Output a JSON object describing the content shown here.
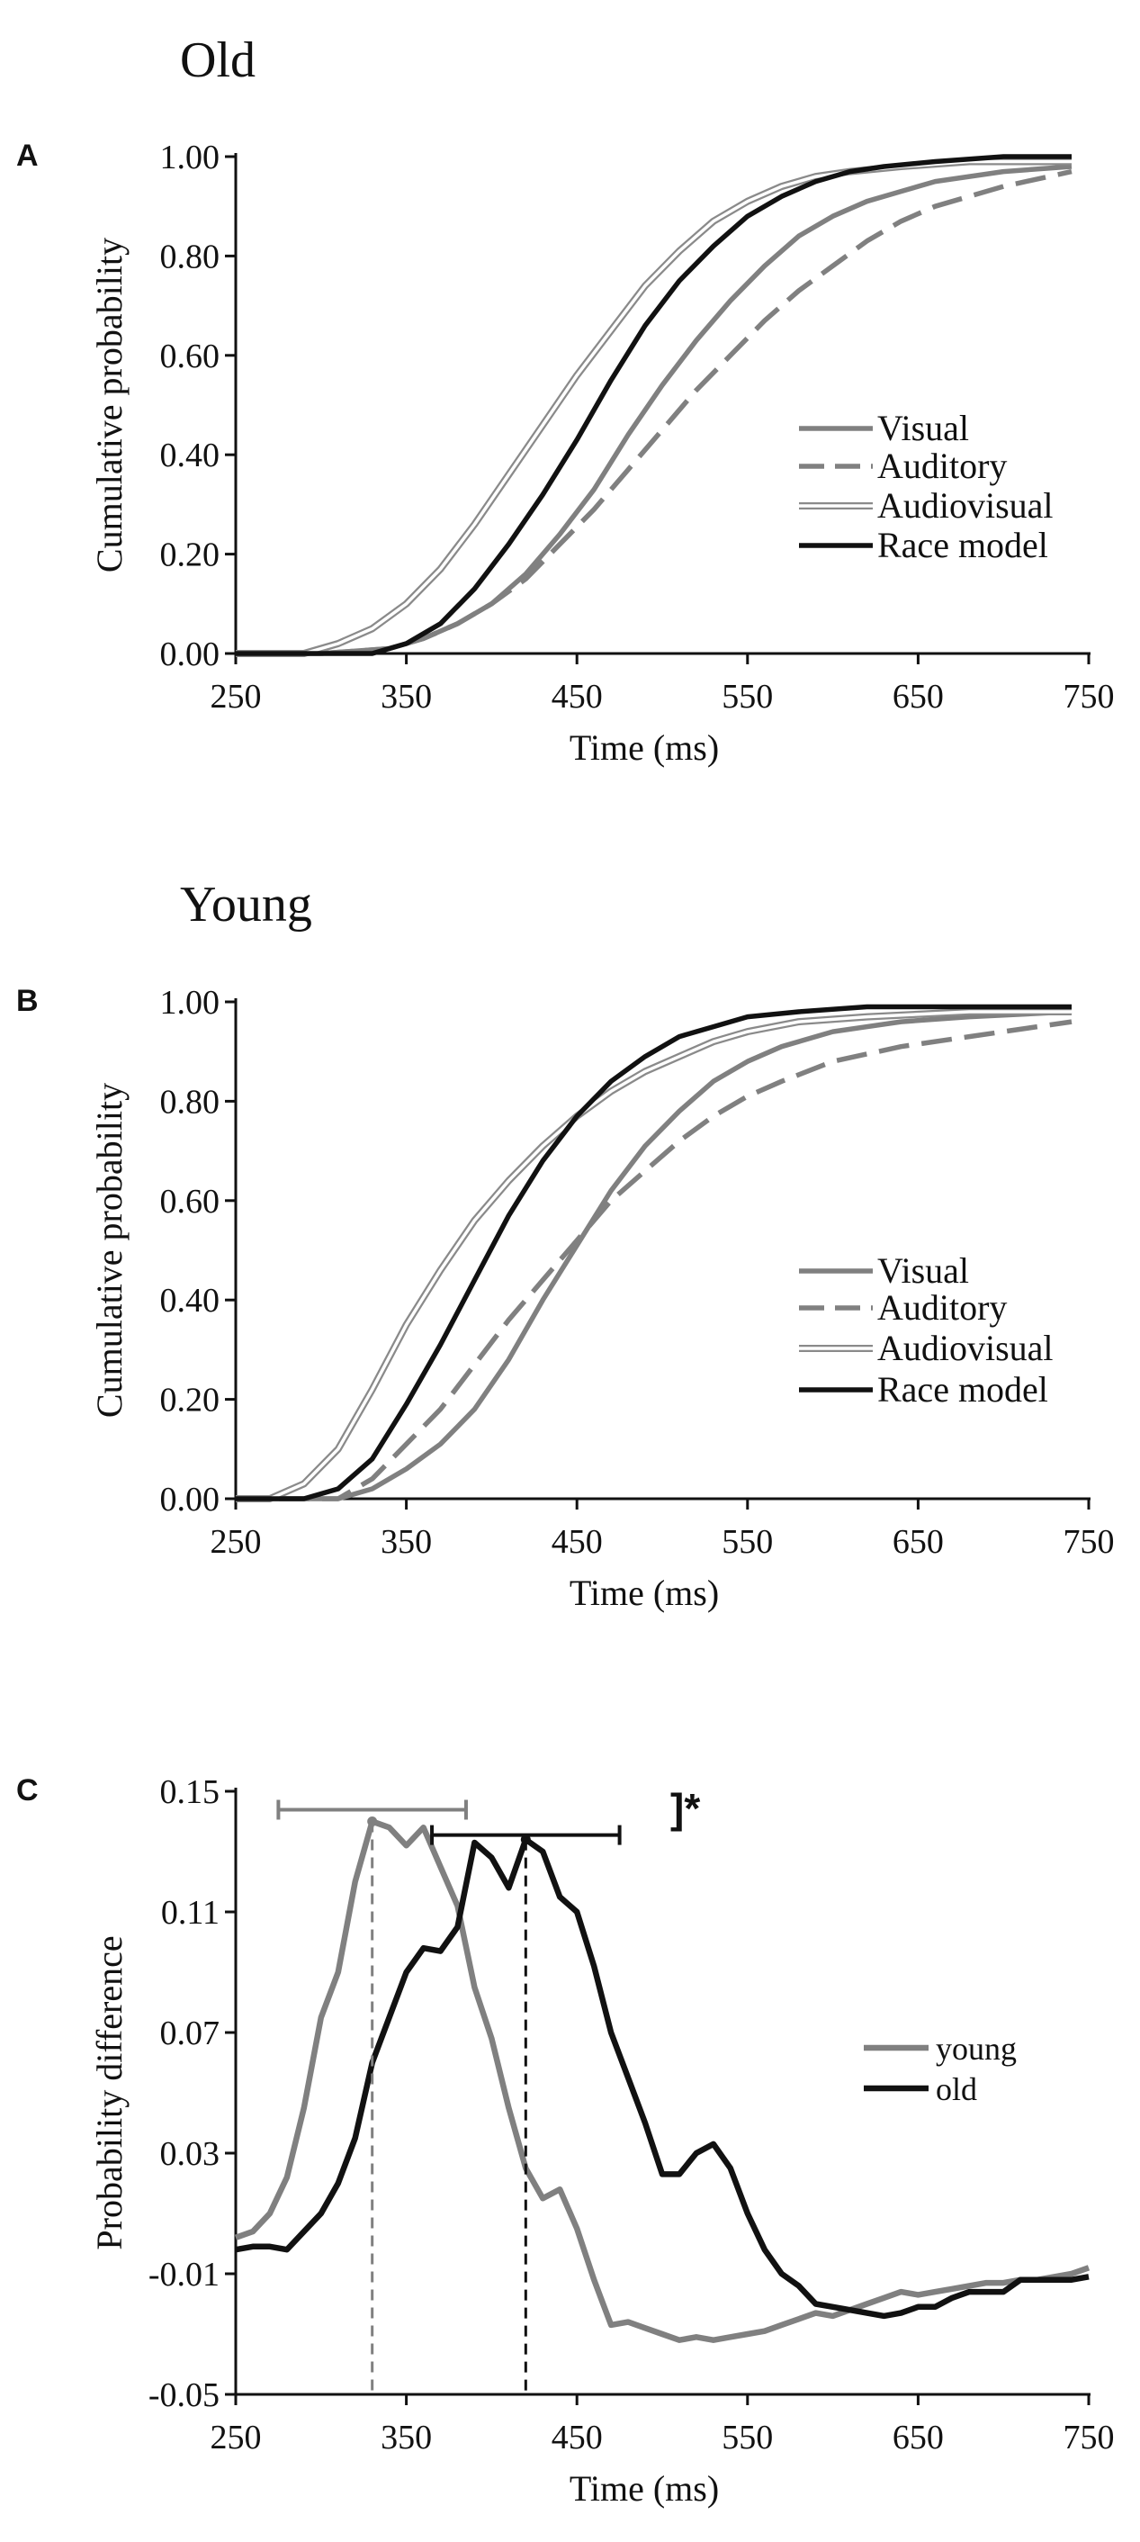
{
  "colors": {
    "black": "#111111",
    "gray": "#808080",
    "double_outer": "#8a8a8a",
    "white": "#ffffff"
  },
  "chart_data": [
    {
      "type": "line",
      "id": "A",
      "panel_letter": "A",
      "title": "Old",
      "xlabel": "Time (ms)",
      "ylabel": "Cumulative probability",
      "xlim": [
        250,
        750
      ],
      "ylim": [
        0,
        1
      ],
      "xticks": [
        "250",
        "350",
        "450",
        "550",
        "650",
        "750"
      ],
      "yticks": [
        "0.00",
        "0.20",
        "0.40",
        "0.60",
        "0.80",
        "1.00"
      ],
      "legend_position": "right-middle",
      "series": [
        {
          "name": "Visual",
          "style": "solid-gray",
          "x": [
            250,
            300,
            340,
            360,
            380,
            400,
            420,
            440,
            460,
            480,
            500,
            520,
            540,
            560,
            580,
            600,
            620,
            640,
            660,
            700,
            740
          ],
          "y": [
            0,
            0,
            0.01,
            0.03,
            0.06,
            0.1,
            0.16,
            0.24,
            0.33,
            0.44,
            0.54,
            0.63,
            0.71,
            0.78,
            0.84,
            0.88,
            0.91,
            0.93,
            0.95,
            0.97,
            0.98
          ]
        },
        {
          "name": "Auditory",
          "style": "dashed-gray",
          "x": [
            250,
            300,
            340,
            360,
            380,
            400,
            420,
            440,
            460,
            480,
            500,
            520,
            540,
            560,
            580,
            600,
            620,
            640,
            660,
            700,
            740
          ],
          "y": [
            0,
            0,
            0.01,
            0.03,
            0.06,
            0.1,
            0.15,
            0.22,
            0.29,
            0.37,
            0.45,
            0.53,
            0.6,
            0.67,
            0.73,
            0.78,
            0.83,
            0.87,
            0.9,
            0.94,
            0.97
          ]
        },
        {
          "name": "Audiovisual",
          "style": "double",
          "x": [
            250,
            290,
            310,
            330,
            350,
            370,
            390,
            410,
            430,
            450,
            470,
            490,
            510,
            530,
            550,
            570,
            590,
            610,
            640,
            680,
            740
          ],
          "y": [
            0,
            0,
            0.02,
            0.05,
            0.1,
            0.17,
            0.26,
            0.36,
            0.46,
            0.56,
            0.65,
            0.74,
            0.81,
            0.87,
            0.91,
            0.94,
            0.96,
            0.97,
            0.98,
            0.99,
            0.99
          ]
        },
        {
          "name": "Race model",
          "style": "solid-black",
          "x": [
            250,
            330,
            350,
            370,
            390,
            410,
            430,
            450,
            470,
            490,
            510,
            530,
            550,
            570,
            590,
            610,
            630,
            660,
            700,
            740
          ],
          "y": [
            0,
            0,
            0.02,
            0.06,
            0.13,
            0.22,
            0.32,
            0.43,
            0.55,
            0.66,
            0.75,
            0.82,
            0.88,
            0.92,
            0.95,
            0.97,
            0.98,
            0.99,
            1.0,
            1.0
          ]
        }
      ]
    },
    {
      "type": "line",
      "id": "B",
      "panel_letter": "B",
      "title": "Young",
      "xlabel": "Time (ms)",
      "ylabel": "Cumulative probability",
      "xlim": [
        250,
        750
      ],
      "ylim": [
        0,
        1
      ],
      "xticks": [
        "250",
        "350",
        "450",
        "550",
        "650",
        "750"
      ],
      "yticks": [
        "0.00",
        "0.20",
        "0.40",
        "0.60",
        "0.80",
        "1.00"
      ],
      "legend_position": "right-middle",
      "series": [
        {
          "name": "Visual",
          "style": "solid-gray",
          "x": [
            250,
            310,
            330,
            350,
            370,
            390,
            410,
            430,
            450,
            470,
            490,
            510,
            530,
            550,
            570,
            600,
            640,
            680,
            740
          ],
          "y": [
            0,
            0,
            0.02,
            0.06,
            0.11,
            0.18,
            0.28,
            0.4,
            0.51,
            0.62,
            0.71,
            0.78,
            0.84,
            0.88,
            0.91,
            0.94,
            0.96,
            0.97,
            0.98
          ]
        },
        {
          "name": "Auditory",
          "style": "dashed-gray",
          "x": [
            250,
            310,
            330,
            350,
            370,
            390,
            410,
            430,
            450,
            470,
            490,
            510,
            530,
            550,
            570,
            600,
            640,
            680,
            740
          ],
          "y": [
            0,
            0,
            0.04,
            0.11,
            0.18,
            0.27,
            0.36,
            0.44,
            0.52,
            0.6,
            0.66,
            0.72,
            0.77,
            0.81,
            0.84,
            0.88,
            0.91,
            0.93,
            0.96
          ]
        },
        {
          "name": "Audiovisual",
          "style": "double",
          "x": [
            250,
            270,
            290,
            310,
            330,
            350,
            370,
            390,
            410,
            430,
            450,
            470,
            490,
            510,
            530,
            550,
            580,
            620,
            680,
            740
          ],
          "y": [
            0,
            0,
            0.03,
            0.1,
            0.22,
            0.35,
            0.46,
            0.56,
            0.64,
            0.71,
            0.77,
            0.82,
            0.86,
            0.89,
            0.92,
            0.94,
            0.96,
            0.97,
            0.98,
            0.98
          ]
        },
        {
          "name": "Race model",
          "style": "solid-black",
          "x": [
            250,
            290,
            310,
            330,
            350,
            370,
            390,
            410,
            430,
            450,
            470,
            490,
            510,
            530,
            550,
            580,
            620,
            680,
            740
          ],
          "y": [
            0,
            0,
            0.02,
            0.08,
            0.19,
            0.31,
            0.44,
            0.57,
            0.68,
            0.77,
            0.84,
            0.89,
            0.93,
            0.95,
            0.97,
            0.98,
            0.99,
            0.99,
            0.99
          ]
        }
      ]
    },
    {
      "type": "line",
      "id": "C",
      "panel_letter": "C",
      "title": "",
      "xlabel": "Time (ms)",
      "ylabel": "Probability difference",
      "xlim": [
        250,
        750
      ],
      "ylim": [
        -0.05,
        0.15
      ],
      "xticks": [
        "250",
        "350",
        "450",
        "550",
        "650",
        "750"
      ],
      "yticks": [
        "-0.05",
        "-0.01",
        "0.03",
        "0.07",
        "0.11",
        "0.15"
      ],
      "legend_position": "right-middle",
      "significance_label": "]*",
      "series": [
        {
          "name": "young",
          "style": "thick-gray",
          "x": [
            250,
            260,
            270,
            280,
            290,
            300,
            310,
            320,
            330,
            340,
            350,
            360,
            370,
            380,
            390,
            400,
            410,
            420,
            430,
            440,
            450,
            460,
            470,
            480,
            490,
            500,
            510,
            520,
            530,
            540,
            550,
            560,
            570,
            580,
            590,
            600,
            610,
            620,
            630,
            640,
            650,
            660,
            670,
            680,
            690,
            700,
            710,
            720,
            730,
            740,
            750
          ],
          "y": [
            0.002,
            0.004,
            0.01,
            0.022,
            0.045,
            0.075,
            0.09,
            0.12,
            0.14,
            0.138,
            0.132,
            0.138,
            0.125,
            0.112,
            0.085,
            0.068,
            0.045,
            0.025,
            0.015,
            0.018,
            0.005,
            -0.012,
            -0.027,
            -0.026,
            -0.028,
            -0.03,
            -0.032,
            -0.031,
            -0.032,
            -0.031,
            -0.03,
            -0.029,
            -0.027,
            -0.025,
            -0.023,
            -0.024,
            -0.022,
            -0.02,
            -0.018,
            -0.016,
            -0.017,
            -0.016,
            -0.015,
            -0.014,
            -0.013,
            -0.013,
            -0.012,
            -0.012,
            -0.011,
            -0.01,
            -0.008
          ]
        },
        {
          "name": "old",
          "style": "thick-black",
          "x": [
            250,
            260,
            270,
            280,
            290,
            300,
            310,
            320,
            330,
            340,
            350,
            360,
            370,
            380,
            390,
            400,
            410,
            420,
            430,
            440,
            450,
            460,
            470,
            480,
            490,
            500,
            510,
            520,
            530,
            540,
            550,
            560,
            570,
            580,
            590,
            600,
            610,
            620,
            630,
            640,
            650,
            660,
            670,
            680,
            690,
            700,
            710,
            720,
            730,
            740,
            750
          ],
          "y": [
            -0.002,
            -0.001,
            -0.001,
            -0.002,
            0.004,
            0.01,
            0.02,
            0.035,
            0.06,
            0.075,
            0.09,
            0.098,
            0.097,
            0.105,
            0.133,
            0.128,
            0.118,
            0.134,
            0.13,
            0.115,
            0.11,
            0.092,
            0.07,
            0.055,
            0.04,
            0.023,
            0.023,
            0.03,
            0.033,
            0.025,
            0.01,
            -0.002,
            -0.01,
            -0.014,
            -0.02,
            -0.021,
            -0.022,
            -0.023,
            -0.024,
            -0.023,
            -0.021,
            -0.021,
            -0.018,
            -0.016,
            -0.016,
            -0.016,
            -0.012,
            -0.012,
            -0.012,
            -0.012,
            -0.011
          ]
        }
      ],
      "peaks": [
        {
          "name": "young",
          "x": 330,
          "y": 0.14,
          "range": [
            275,
            385
          ]
        },
        {
          "name": "old",
          "x": 420,
          "y": 0.134,
          "range": [
            365,
            475
          ]
        }
      ]
    }
  ]
}
